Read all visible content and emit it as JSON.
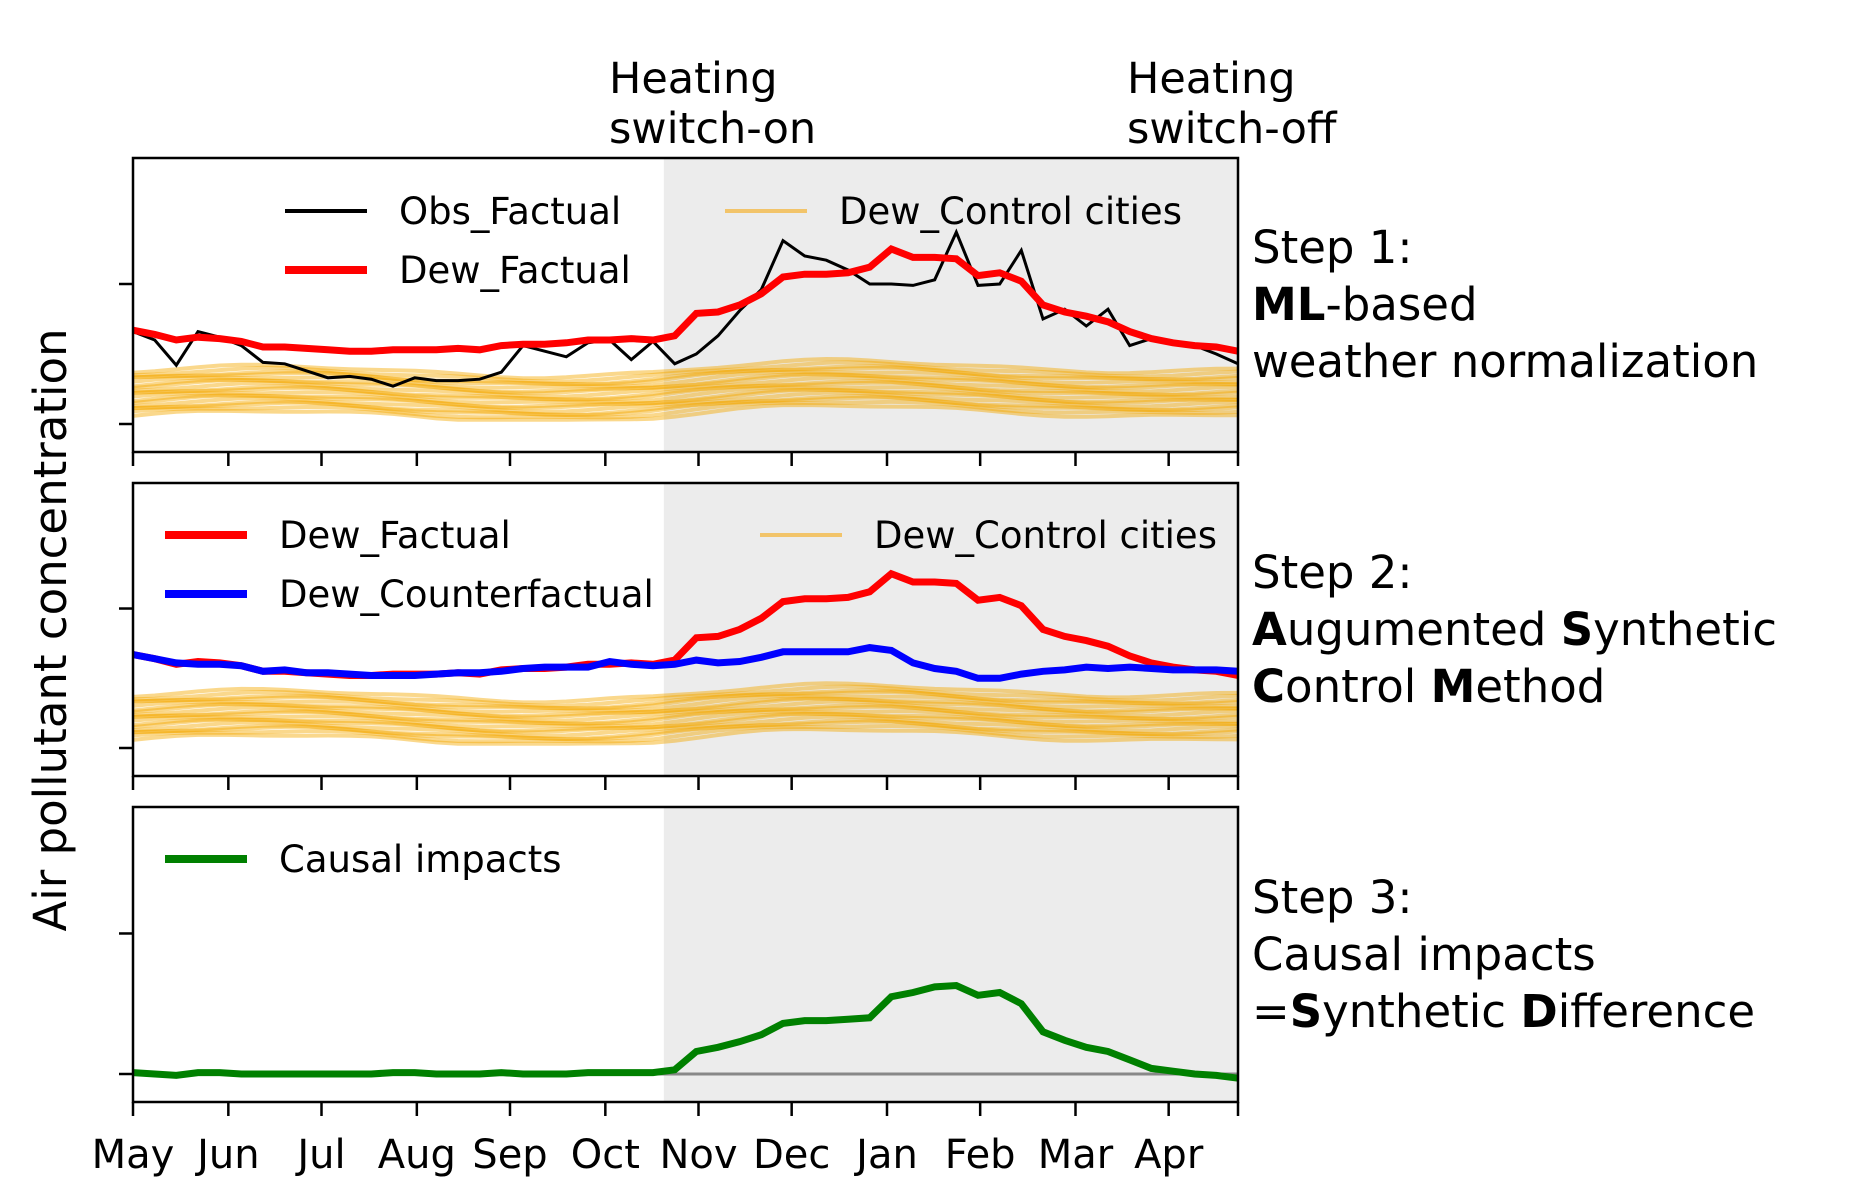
{
  "figure": {
    "ylabel": "Air pollutant concentration",
    "annotations": [
      {
        "id": "on",
        "lines": [
          "Heating",
          "switch-on"
        ]
      },
      {
        "id": "off",
        "lines": [
          "Heating",
          "switch-off"
        ]
      }
    ],
    "months": [
      "May",
      "Jun",
      "Jul",
      "Aug",
      "Sep",
      "Oct",
      "Nov",
      "Dec",
      "Jan",
      "Feb",
      "Mar",
      "Apr"
    ],
    "month_week_index": [
      0,
      4.4,
      8.7,
      13.1,
      17.4,
      21.8,
      26.1,
      30.4,
      34.8,
      39.1,
      43.5,
      47.8
    ],
    "heating_period_weeks": [
      24.5,
      52
    ]
  },
  "steps": [
    {
      "lines": [
        [
          {
            "b": false,
            "t": "Step 1:"
          }
        ],
        [
          {
            "b": true,
            "t": "ML"
          },
          {
            "b": false,
            "t": "-based"
          }
        ],
        [
          {
            "b": false,
            "t": "weather normalization"
          }
        ]
      ]
    },
    {
      "lines": [
        [
          {
            "b": false,
            "t": "Step 2:"
          }
        ],
        [
          {
            "b": true,
            "t": "A"
          },
          {
            "b": false,
            "t": "ugumented "
          },
          {
            "b": true,
            "t": "S"
          },
          {
            "b": false,
            "t": "ynthetic"
          }
        ],
        [
          {
            "b": true,
            "t": "C"
          },
          {
            "b": false,
            "t": "ontrol "
          },
          {
            "b": true,
            "t": "M"
          },
          {
            "b": false,
            "t": "ethod"
          }
        ]
      ]
    },
    {
      "lines": [
        [
          {
            "b": false,
            "t": "Step 3:"
          }
        ],
        [
          {
            "b": false,
            "t": "Causal impacts"
          }
        ],
        [
          {
            "b": false,
            "t": "="
          },
          {
            "b": true,
            "t": "S"
          },
          {
            "b": false,
            "t": "ynthetic "
          },
          {
            "b": true,
            "t": "D"
          },
          {
            "b": false,
            "t": "ifference"
          }
        ]
      ]
    }
  ],
  "legends": {
    "p1": [
      {
        "label": "Obs_Factual",
        "color": "#000000"
      },
      {
        "label": "Dew_Factual",
        "color": "#ff0000"
      },
      {
        "label": "Dew_Control cities",
        "color": "#f2c46a"
      }
    ],
    "p2": [
      {
        "label": "Dew_Factual",
        "color": "#ff0000"
      },
      {
        "label": "Dew_Counterfactual",
        "color": "#0000ff"
      },
      {
        "label": "Dew_Control cities",
        "color": "#f2c46a"
      }
    ],
    "p3": [
      {
        "label": "Causal impacts",
        "color": "#008000"
      }
    ]
  },
  "colors": {
    "obs": "#000000",
    "factual": "#ff0000",
    "counterfactual": "#0000ff",
    "control": "#f5a800",
    "impact": "#008000",
    "shade": "#ececec"
  },
  "chart_data": [
    {
      "type": "line",
      "ylim": [
        0,
        1.9
      ],
      "x": [
        0,
        1,
        2,
        3,
        4,
        5,
        6,
        7,
        8,
        9,
        10,
        11,
        12,
        13,
        14,
        15,
        16,
        17,
        18,
        19,
        20,
        21,
        22,
        23,
        24,
        25,
        26,
        27,
        28,
        29,
        30,
        31,
        32,
        33,
        34,
        35,
        36,
        37,
        38,
        39,
        40,
        41,
        42,
        43,
        44,
        45,
        46,
        47,
        48,
        49,
        50,
        51
      ],
      "series": [
        {
          "name": "Obs_Factual",
          "values": [
            0.66,
            0.6,
            0.42,
            0.66,
            0.62,
            0.56,
            0.44,
            0.43,
            0.38,
            0.33,
            0.34,
            0.32,
            0.27,
            0.33,
            0.31,
            0.31,
            0.32,
            0.37,
            0.56,
            0.52,
            0.48,
            0.58,
            0.6,
            0.46,
            0.59,
            0.43,
            0.5,
            0.63,
            0.81,
            0.96,
            1.31,
            1.2,
            1.17,
            1.1,
            1.0,
            1.0,
            0.99,
            1.03,
            1.37,
            0.99,
            1.0,
            1.24,
            0.75,
            0.82,
            0.7,
            0.82,
            0.56,
            0.61,
            0.58,
            0.56,
            0.5,
            0.43
          ]
        },
        {
          "name": "Dew_Factual",
          "values": [
            0.67,
            0.64,
            0.6,
            0.62,
            0.61,
            0.59,
            0.55,
            0.55,
            0.54,
            0.53,
            0.52,
            0.52,
            0.53,
            0.53,
            0.53,
            0.54,
            0.53,
            0.56,
            0.57,
            0.57,
            0.58,
            0.6,
            0.6,
            0.61,
            0.6,
            0.63,
            0.79,
            0.8,
            0.85,
            0.93,
            1.05,
            1.07,
            1.07,
            1.08,
            1.12,
            1.25,
            1.19,
            1.19,
            1.18,
            1.06,
            1.08,
            1.02,
            0.85,
            0.8,
            0.77,
            0.73,
            0.66,
            0.61,
            0.58,
            0.56,
            0.55,
            0.52
          ]
        },
        {
          "name": "Dew_Counterfactual",
          "values": [
            0.67,
            0.64,
            0.61,
            0.6,
            0.6,
            0.59,
            0.55,
            0.56,
            0.54,
            0.54,
            0.53,
            0.52,
            0.52,
            0.52,
            0.53,
            0.54,
            0.54,
            0.55,
            0.57,
            0.58,
            0.58,
            0.58,
            0.62,
            0.6,
            0.59,
            0.6,
            0.63,
            0.61,
            0.62,
            0.65,
            0.69,
            0.69,
            0.69,
            0.69,
            0.72,
            0.7,
            0.61,
            0.57,
            0.55,
            0.5,
            0.5,
            0.53,
            0.55,
            0.56,
            0.58,
            0.57,
            0.58,
            0.57,
            0.56,
            0.56,
            0.56,
            0.55
          ]
        },
        {
          "name": "Causal impacts",
          "values": [
            0.01,
            0.0,
            -0.01,
            0.01,
            0.01,
            0.0,
            0.0,
            0.0,
            0.0,
            0.0,
            0.0,
            0.0,
            0.01,
            0.01,
            0.0,
            0.0,
            0.0,
            0.01,
            0.0,
            0.0,
            0.0,
            0.01,
            0.01,
            0.01,
            0.01,
            0.03,
            0.16,
            0.19,
            0.23,
            0.28,
            0.36,
            0.38,
            0.38,
            0.39,
            0.4,
            0.55,
            0.58,
            0.62,
            0.63,
            0.56,
            0.58,
            0.5,
            0.3,
            0.24,
            0.19,
            0.16,
            0.1,
            0.04,
            0.02,
            0.0,
            -0.01,
            -0.03
          ]
        }
      ]
    }
  ]
}
